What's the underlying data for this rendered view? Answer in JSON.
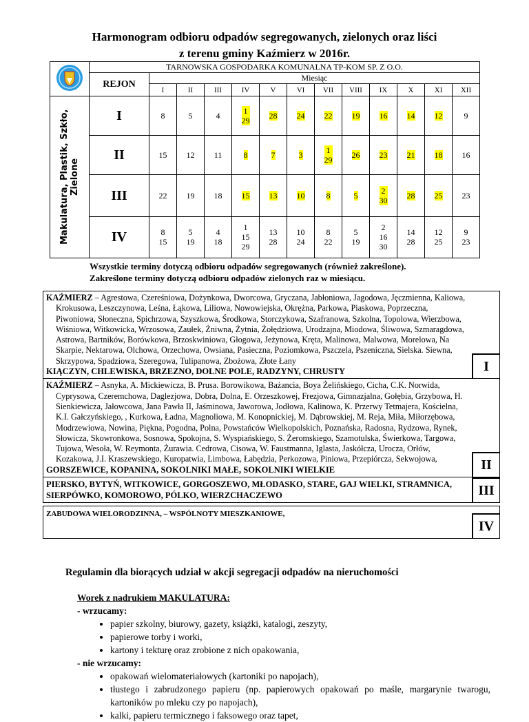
{
  "title": {
    "line1": "Harmonogram odbioru odpadów segregowanych, zielonych oraz liści",
    "line2": "z terenu gminy Kaźmierz w 2016r."
  },
  "table": {
    "company": "TARNOWSKA GOSPODARKA KOMUNALNA TP-KOM SP. Z O.O.",
    "rejon_label": "REJON",
    "month_label": "Miesiąc",
    "side_label": "Makulatura, Plastik, Szkło, Zielone",
    "months": [
      "I",
      "II",
      "III",
      "IV",
      "V",
      "VI",
      "VII",
      "VIII",
      "IX",
      "X",
      "XI",
      "XII"
    ],
    "highlight_color": "#ffff00",
    "rows": [
      {
        "region": "I",
        "cells": [
          [
            "8"
          ],
          [
            "5"
          ],
          [
            "4"
          ],
          [
            "1",
            "29"
          ],
          [
            "28"
          ],
          [
            "24"
          ],
          [
            "22"
          ],
          [
            "19"
          ],
          [
            "16"
          ],
          [
            "14"
          ],
          [
            "12"
          ],
          [
            "9"
          ]
        ],
        "highlighted": [
          3,
          4,
          5,
          6,
          7,
          8,
          9,
          10
        ]
      },
      {
        "region": "II",
        "cells": [
          [
            "15"
          ],
          [
            "12"
          ],
          [
            "11"
          ],
          [
            "8"
          ],
          [
            "7"
          ],
          [
            "3"
          ],
          [
            "1",
            "29"
          ],
          [
            "26"
          ],
          [
            "23"
          ],
          [
            "21"
          ],
          [
            "18"
          ],
          [
            "16"
          ]
        ],
        "highlighted": [
          3,
          4,
          5,
          6,
          7,
          8,
          9,
          10
        ]
      },
      {
        "region": "III",
        "cells": [
          [
            "22"
          ],
          [
            "19"
          ],
          [
            "18"
          ],
          [
            "15"
          ],
          [
            "13"
          ],
          [
            "10"
          ],
          [
            "8"
          ],
          [
            "5"
          ],
          [
            "2",
            "30"
          ],
          [
            "28"
          ],
          [
            "25"
          ],
          [
            "23"
          ]
        ],
        "highlighted": [
          3,
          4,
          5,
          6,
          7,
          8,
          9,
          10
        ]
      },
      {
        "region": "IV",
        "cells": [
          [
            "8",
            "15"
          ],
          [
            "5",
            "19"
          ],
          [
            "4",
            "18"
          ],
          [
            "1",
            "15",
            "29"
          ],
          [
            "13",
            "28"
          ],
          [
            "10",
            "24"
          ],
          [
            "8",
            "22"
          ],
          [
            "5",
            "19"
          ],
          [
            "2",
            "16",
            "30"
          ],
          [
            "14",
            "28"
          ],
          [
            "12",
            "25"
          ],
          [
            "9",
            "23"
          ]
        ],
        "highlighted": []
      }
    ]
  },
  "notes": [
    "Wszystkie terminy dotyczą odbioru odpadów segregowanych (również zakreślone).",
    "Zakreślone terminy dotyczą odbioru odpadów zielonych raz w miesiącu."
  ],
  "regions": [
    {
      "label": "I",
      "town": "KAŹMIERZ",
      "streets": " – Agrestowa, Czereśniowa, Dożynkowa, Dworcowa, Gryczana, Jabłoniowa, Jagodowa, Jęczmienna, Kaliowa, Krokusowa, Leszczynowa, Leśna, Łąkowa, Liliowa, Nowowiejska, Okrężna, Parkowa, Piaskowa, Poprzeczna, Piwoniowa, Słoneczna, Spichrzowa, Szyszkowa, Środkowa, Storczykowa, Szafranowa, Szkolna, Topolowa, Wierzbowa, Wiśniowa, Witkowicka, Wrzosowa, Zaułek, Żniwna, Żytnia, Żołędziowa, Urodzajna, Miodowa, Śliwowa, Szmaragdowa, Astrowa, Bartników, Borówkowa, Brzoskwiniowa, Głogowa, Jeżynowa, Kręta, Malinowa, Malwowa, Morelowa, Na Skarpie, Nektarowa, Olchowa, Orzechowa, Owsiana, Pasieczna, Poziomkowa, Pszczela, Pszeniczna, Sielska. Siewna, Skrzypowa, Spadziowa, Szeregowa, Tulipanowa, Zbożowa, Złote Łany",
      "villages": "KIĄCZYN, CHLEWISKA, BRZEZNO, DOLNE POLE, RADZYNY, CHRUSTY"
    },
    {
      "label": "II",
      "town": "KAŹMIERZ",
      "streets": " – Asnyka, A. Mickiewicza, B. Prusa. Borowikowa, Bażancia, Boya Żelińskiego, Cicha, C.K. Norwida, Cyprysowa, Czeremchowa, Daglezjowa, Dobra, Dolna, E. Orzeszkowej, Frezjowa, Gimnazjalna, Gołębia, Grzybowa, H. Sienkiewicza, Jałowcowa, Jana Pawła II, Jaśminowa, Jaworowa, Jodłowa, Kalinowa, K. Przerwy Tetmajera, Kościelna, K.I. Gałczyńskiego, , Kurkowa, Ładna, Magnoliowa, M. Konopnickiej, M. Dąbrowskiej, M. Reja, Miła, Miłorzębowa, Modrzewiowa, Nowina, Piękna, Pogodna, Polna, Powstańców Wielkopolskich, Poznańska, Radosna, Rydzowa, Rynek, Słowicza, Skowronkowa, Sosnowa, Spokojna, S. Wyspiańskiego, S. Żeromskiego, Szamotulska, Świerkowa, Targowa, Tujowa, Wesoła, W. Reymonta, Żurawia. Cedrowa, Cisowa, W. Faustmanna, Iglasta, Jaskółcza, Urocza, Orłów, Kozakowa, J.I. Kraszewskiego, Kuropatwia, Limbowa, Łabędzia, Perkozowa, Piniowa, Przepiórcza, Sekwojowa,",
      "villages": "GORSZEWICE, KOPANINA, SOKOLNIKI MAŁE, SOKOLNIKI WIELKIE"
    },
    {
      "label": "III",
      "villages": "PIERSKO, BYTYŃ, WITKOWICE, GORGOSZEWO, MŁODASKO, STARE, GAJ WIELKI, STRAMNICA, SIERPÓWKO, KOMOROWO, PÓLKO, WIERZCHACZEWO"
    },
    {
      "label": "IV",
      "villages": "ZABUDOWA WIELORODZINNA, – WSPÓLNOTY MIESZKANIOWE,"
    }
  ],
  "rules": {
    "heading": "Regulamin dla biorących udział w akcji segregacji odpadów na nieruchomości",
    "bag_title": "Worek z nadrukiem MAKULATURA:",
    "in_label": "- wrzucamy:",
    "in_items": [
      "papier szkolny, biurowy, gazety, książki, katalogi, zeszyty,",
      "papierowe torby i worki,",
      "kartony i tekturę oraz zrobione z nich opakowania,"
    ],
    "out_label": "- nie wrzucamy:",
    "out_items": [
      "opakowań wielomateriałowych (kartoniki po napojach),",
      "tłustego i zabrudzonego papieru (np. papierowych opakowań po maśle, margarynie twarogu, kartoników po mleku czy po napojach),",
      "kalki, papieru termicznego i faksowego oraz tapet,"
    ]
  }
}
